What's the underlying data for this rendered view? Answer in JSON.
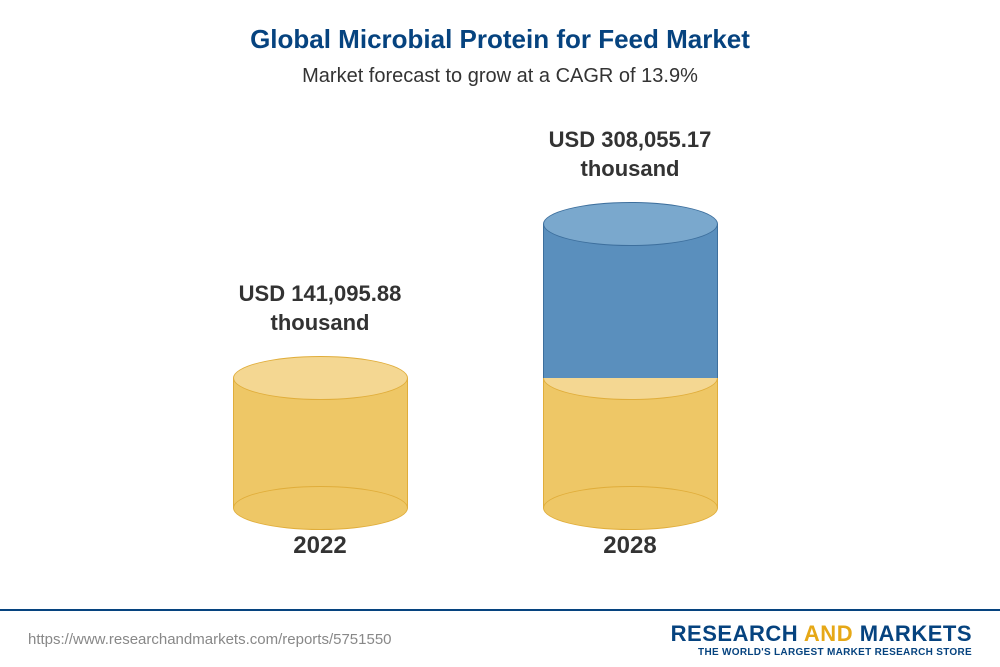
{
  "title": "Global Microbial Protein for Feed Market",
  "subtitle": "Market forecast to grow at a CAGR of 13.9%",
  "title_color": "#06437f",
  "subtitle_color": "#333333",
  "chart": {
    "type": "3d-cylinder-bar",
    "cylinder_width": 175,
    "ellipse_ry": 22,
    "columns": [
      {
        "year": "2022",
        "value_line1": "USD 141,095.88",
        "value_line2": "thousand",
        "segments": [
          {
            "height": 130,
            "fill": "#eec766",
            "top": "#f4d792",
            "stroke": "#e0ad3a"
          }
        ]
      },
      {
        "year": "2028",
        "value_line1": "USD 308,055.17",
        "value_line2": "thousand",
        "segments": [
          {
            "height": 130,
            "fill": "#eec766",
            "top": "#f4d792",
            "stroke": "#e0ad3a"
          },
          {
            "height": 154,
            "fill": "#5a8fbd",
            "top": "#7aa8cd",
            "stroke": "#3d6f9d"
          }
        ]
      }
    ],
    "label_color": "#333333",
    "year_color": "#333333",
    "label_fontsize": 22,
    "year_fontsize": 24
  },
  "footer": {
    "url": "https://www.researchandmarkets.com/reports/5751550",
    "url_color": "#888888",
    "border_color": "#06437f",
    "brand_word1": "RESEARCH",
    "brand_and": "AND",
    "brand_word2": "MARKETS",
    "brand_color1": "#06437f",
    "brand_color_and": "#e6a817",
    "brand_sub": "THE WORLD'S LARGEST MARKET RESEARCH STORE",
    "brand_sub_color": "#06437f"
  }
}
